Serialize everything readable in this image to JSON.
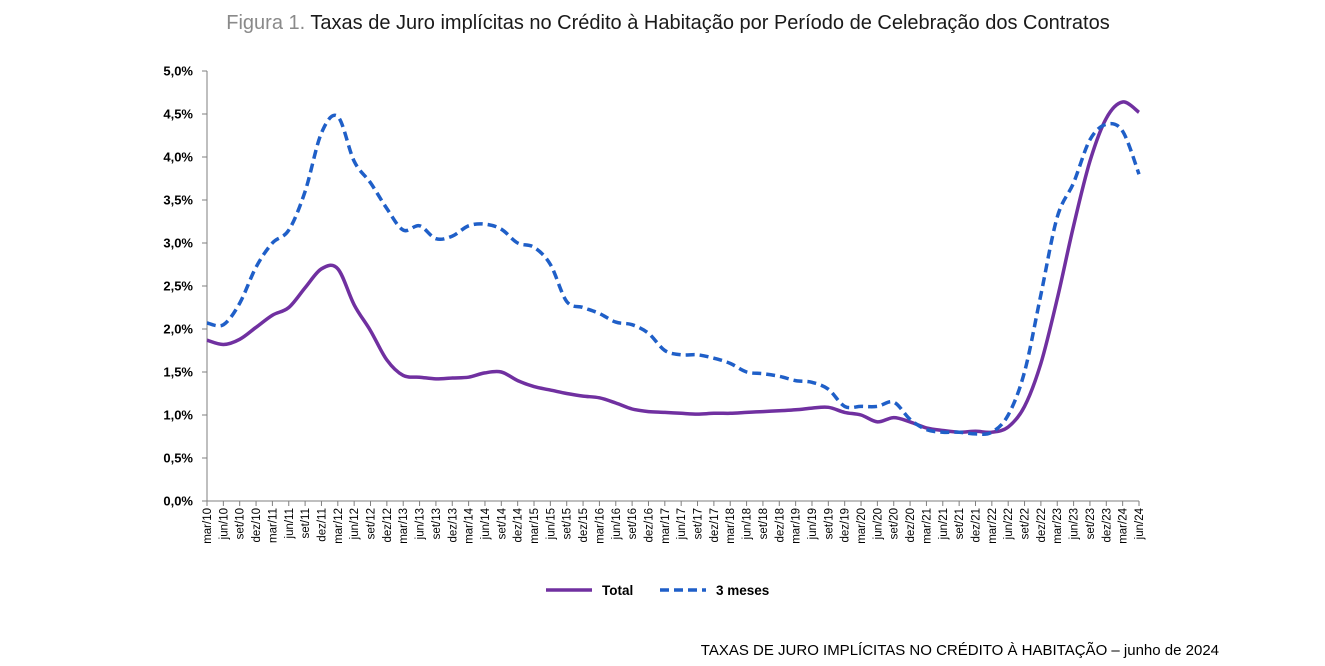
{
  "title": {
    "prefix": "Figura 1.",
    "text": "Taxas de Juro implícitas no Crédito à Habitação por Período de Celebração dos Contratos"
  },
  "footer": "TAXAS DE JURO IMPLÍCITAS NO CRÉDITO À HABITAÇÃO – junho de 2024",
  "chart_data": {
    "type": "line",
    "title": "Taxas de Juro implícitas no Crédito à Habitação por Período de Celebração dos Contratos",
    "xlabel": "",
    "ylabel": "",
    "ylim": [
      0,
      5
    ],
    "y_ticks": [
      "0,0%",
      "0,5%",
      "1,0%",
      "1,5%",
      "2,0%",
      "2,5%",
      "3,0%",
      "3,5%",
      "4,0%",
      "4,5%",
      "5,0%"
    ],
    "grid": false,
    "legend": "bottom-center",
    "categories": [
      "mar/10",
      "jun/10",
      "set/10",
      "dez/10",
      "mar/11",
      "jun/11",
      "set/11",
      "dez/11",
      "mar/12",
      "jun/12",
      "set/12",
      "dez/12",
      "mar/13",
      "jun/13",
      "set/13",
      "dez/13",
      "mar/14",
      "jun/14",
      "set/14",
      "dez/14",
      "mar/15",
      "jun/15",
      "set/15",
      "dez/15",
      "mar/16",
      "jun/16",
      "set/16",
      "dez/16",
      "mar/17",
      "jun/17",
      "set/17",
      "dez/17",
      "mar/18",
      "jun/18",
      "set/18",
      "dez/18",
      "mar/19",
      "jun/19",
      "set/19",
      "dez/19",
      "mar/20",
      "jun/20",
      "set/20",
      "dez/20",
      "mar/21",
      "jun/21",
      "set/21",
      "dez/21",
      "mar/22",
      "jun/22",
      "set/22",
      "dez/22",
      "mar/23",
      "jun/23",
      "set/23",
      "dez/23",
      "mar/24",
      "jun/24"
    ],
    "series": [
      {
        "name": "Total",
        "color": "#7030a0",
        "style": "solid",
        "values": [
          1.87,
          1.82,
          1.88,
          2.02,
          2.16,
          2.25,
          2.48,
          2.7,
          2.7,
          2.28,
          1.98,
          1.64,
          1.46,
          1.44,
          1.42,
          1.43,
          1.44,
          1.49,
          1.5,
          1.4,
          1.33,
          1.29,
          1.25,
          1.22,
          1.2,
          1.14,
          1.07,
          1.04,
          1.03,
          1.02,
          1.01,
          1.02,
          1.02,
          1.03,
          1.04,
          1.05,
          1.06,
          1.08,
          1.09,
          1.03,
          1.0,
          0.92,
          0.97,
          0.92,
          0.85,
          0.82,
          0.8,
          0.81,
          0.8,
          0.86,
          1.1,
          1.6,
          2.35,
          3.2,
          3.95,
          4.45,
          4.64,
          4.52
        ]
      },
      {
        "name": "3 meses",
        "color": "#1f5fc8",
        "style": "dashed",
        "values": [
          2.07,
          2.05,
          2.3,
          2.72,
          3.0,
          3.15,
          3.6,
          4.28,
          4.47,
          3.95,
          3.7,
          3.4,
          3.15,
          3.2,
          3.05,
          3.08,
          3.2,
          3.22,
          3.16,
          3.0,
          2.95,
          2.75,
          2.32,
          2.25,
          2.18,
          2.08,
          2.05,
          1.95,
          1.75,
          1.7,
          1.7,
          1.66,
          1.6,
          1.5,
          1.48,
          1.45,
          1.4,
          1.38,
          1.3,
          1.1,
          1.1,
          1.1,
          1.15,
          0.95,
          0.83,
          0.8,
          0.8,
          0.78,
          0.8,
          1.0,
          1.5,
          2.4,
          3.3,
          3.7,
          4.2,
          4.38,
          4.3,
          3.8
        ]
      }
    ]
  }
}
